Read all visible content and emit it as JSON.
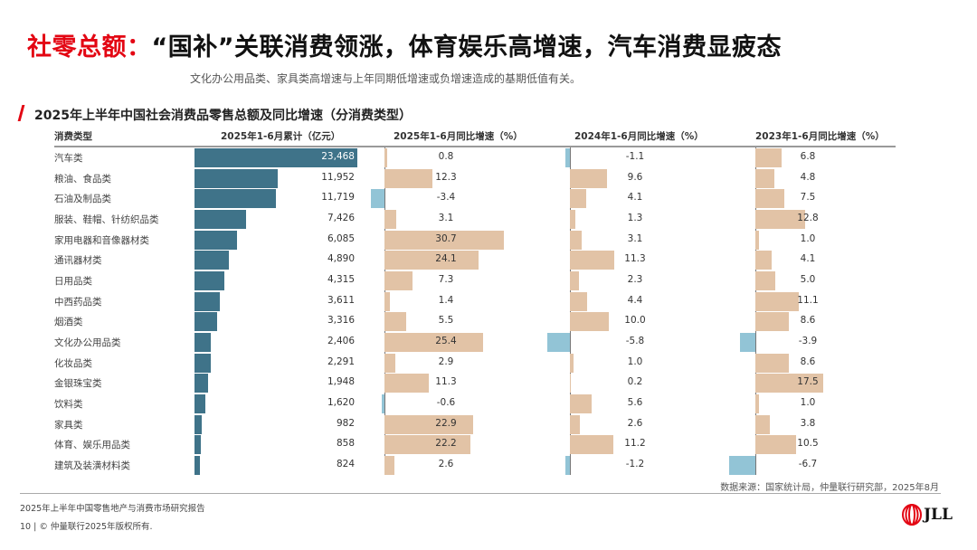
{
  "header": {
    "title_accent": "社零总额：",
    "title_rest": "“国补”关联消费领涨，体育娱乐高增速，汽车消费显疲态",
    "subtitle": "文化办公用品类、家具类高增速与上年同期低增速或负增速造成的基期低值有关。"
  },
  "chart_data": {
    "type": "bar",
    "title": "2025年上半年中国社会消费品零售总额及同比增速（分消费类型）",
    "category_header": "消费类型",
    "categories": [
      "汽车类",
      "粮油、食品类",
      "石油及制品类",
      "服装、鞋帽、针纺织品类",
      "家用电器和音像器材类",
      "通讯器材类",
      "日用品类",
      "中西药品类",
      "烟酒类",
      "文化办公用品类",
      "化妆品类",
      "金银珠宝类",
      "饮料类",
      "家具类",
      "体育、娱乐用品类",
      "建筑及装潢材料类"
    ],
    "series": [
      {
        "name": "2025年1-6月累计（亿元）",
        "values": [
          23468,
          11952,
          11719,
          7426,
          6085,
          4890,
          4315,
          3611,
          3316,
          2406,
          2291,
          1948,
          1620,
          982,
          858,
          824
        ],
        "labels": [
          "23,468",
          "11,952",
          "11,719",
          "7,426",
          "6,085",
          "4,890",
          "4,315",
          "3,611",
          "3,316",
          "2,406",
          "2,291",
          "1,948",
          "1,620",
          "982",
          "858",
          "824"
        ]
      },
      {
        "name": "2025年1-6月同比增速（%）",
        "values": [
          0.8,
          12.3,
          -3.4,
          3.1,
          30.7,
          24.1,
          7.3,
          1.4,
          5.5,
          25.4,
          2.9,
          11.3,
          -0.6,
          22.9,
          22.2,
          2.6
        ]
      },
      {
        "name": "2024年1-6月同比增速（%）",
        "values": [
          -1.1,
          9.6,
          4.1,
          1.3,
          3.1,
          11.3,
          2.3,
          4.4,
          10.0,
          -5.8,
          1.0,
          0.2,
          5.6,
          2.6,
          11.2,
          -1.2
        ]
      },
      {
        "name": "2023年1-6月同比增速（%）",
        "values": [
          6.8,
          4.8,
          7.5,
          12.8,
          1.0,
          4.1,
          5.0,
          11.1,
          8.6,
          -3.9,
          8.6,
          17.5,
          1.0,
          3.8,
          10.5,
          -6.7
        ]
      }
    ],
    "colors": {
      "total": "#3f7389",
      "positive": "#e2c3a6",
      "negative": "#92c4d6"
    }
  },
  "footer": {
    "source": "数据来源：国家统计局，仲量联行研究部，2025年8月",
    "report": "2025年上半年中国零售地产与消费市场研究报告",
    "copyright": "10 | © 仲量联行2025年版权所有.",
    "logo": "JLL"
  }
}
